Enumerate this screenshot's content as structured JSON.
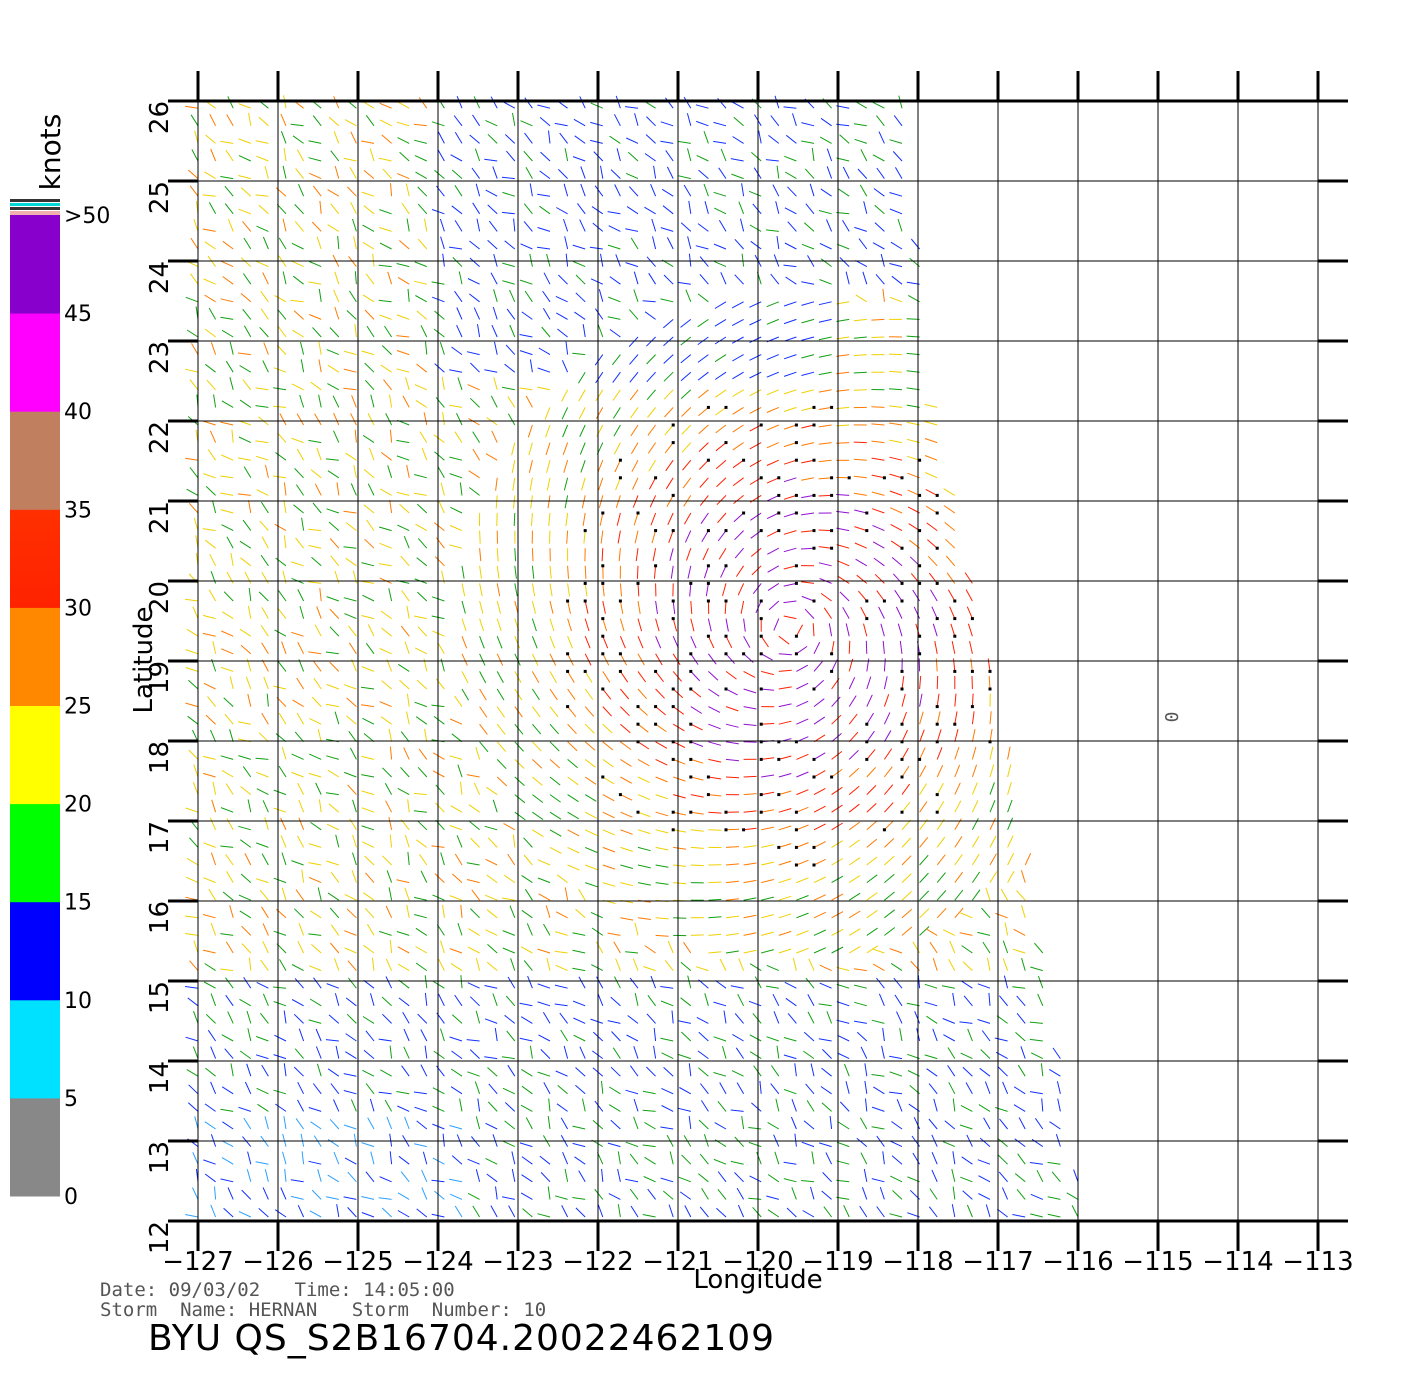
{
  "title": "BYU  QS_S2B16704.20022462109",
  "info": {
    "date_label": "Date:",
    "date": "09/03/02",
    "time_label": "Time:",
    "time": "14:05:00",
    "storm_name_label": "Storm  Name:",
    "storm_name": "HERNAN",
    "storm_number_label": "Storm  Number:",
    "storm_number": "10"
  },
  "axes": {
    "xlabel": "Longitude",
    "ylabel": "Latitude",
    "x_ticks": [
      "-127",
      "-126",
      "-125",
      "-124",
      "-123",
      "-122",
      "-121",
      "-120",
      "-119",
      "-118",
      "-117",
      "-116",
      "-115",
      "-114",
      "-113"
    ],
    "y_ticks": [
      "12",
      "13",
      "14",
      "15",
      "16",
      "17",
      "18",
      "19",
      "20",
      "21",
      "22",
      "23",
      "24",
      "25",
      "26"
    ],
    "xlim": [
      -127,
      -113
    ],
    "ylim": [
      12,
      26
    ],
    "grid": true
  },
  "colorbar": {
    "unit_label": "knots",
    "labels": [
      "0",
      "5",
      "10",
      "15",
      "20",
      "25",
      "30",
      "35",
      "40",
      "45",
      ">50"
    ],
    "colors": [
      "#888888",
      "#00e0ff",
      "#0000ff",
      "#00ff00",
      "#ffff00",
      "#ff8800",
      "#ff2200",
      "#c08060",
      "#ff00ff",
      "#8800cc"
    ]
  },
  "storm_marker": {
    "lon": -114.75,
    "lat": 18.3,
    "symbol": "0"
  },
  "wind_field": {
    "center_lon": -119.6,
    "center_lat": 19.4,
    "swath_right_edge": [
      [
        -118.1,
        26
      ],
      [
        -117.9,
        23
      ],
      [
        -117.3,
        20
      ],
      [
        -116.9,
        18
      ],
      [
        -116.2,
        14
      ],
      [
        -115.9,
        12
      ]
    ],
    "speed_colors": {
      "calm": "#2aa0ff",
      "light": "#1030ff",
      "moderate": "#10a010",
      "fresh": "#f0d000",
      "strong": "#ff7a00",
      "gale": "#ff2000",
      "storm": "#9010d0"
    }
  }
}
